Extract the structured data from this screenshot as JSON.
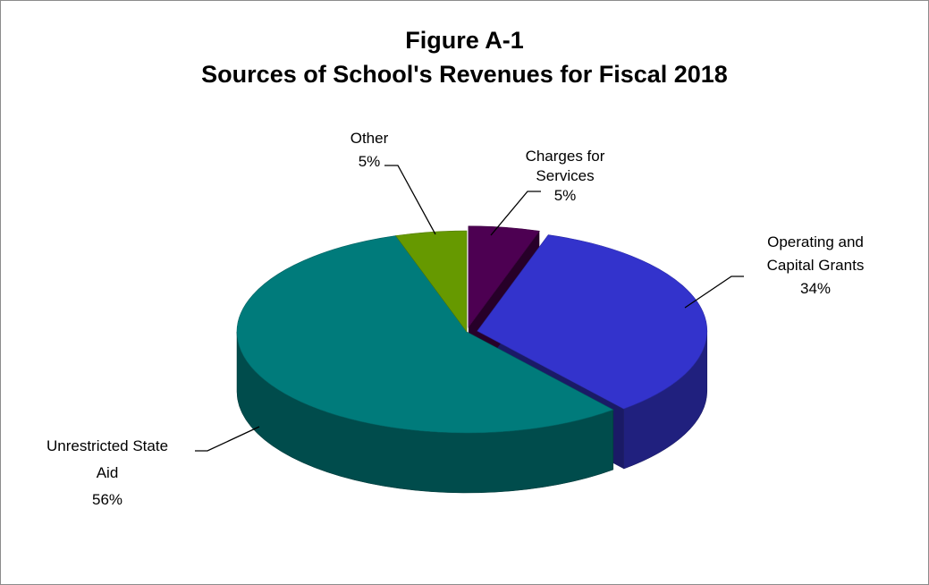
{
  "chart_data": {
    "type": "pie",
    "style": "3d",
    "title": [
      "Figure A-1",
      "Sources of School's Revenues for Fiscal 2018"
    ],
    "slices": [
      {
        "label": [
          "Charges for",
          "Services"
        ],
        "value": 5,
        "display": "5%",
        "color": "#4d0052",
        "exploded": true
      },
      {
        "label": [
          "Operating and",
          "Capital Grants"
        ],
        "value": 34,
        "display": "34%",
        "color": "#3333cc",
        "exploded": true
      },
      {
        "label": [
          "Unrestricted State",
          "Aid"
        ],
        "value": 56,
        "display": "56%",
        "color": "#007b7b",
        "exploded": false
      },
      {
        "label": [
          "Other"
        ],
        "value": 5,
        "display": "5%",
        "color": "#669900",
        "exploded": false
      }
    ],
    "legend": "none",
    "data_labels": "outside with leader lines"
  }
}
